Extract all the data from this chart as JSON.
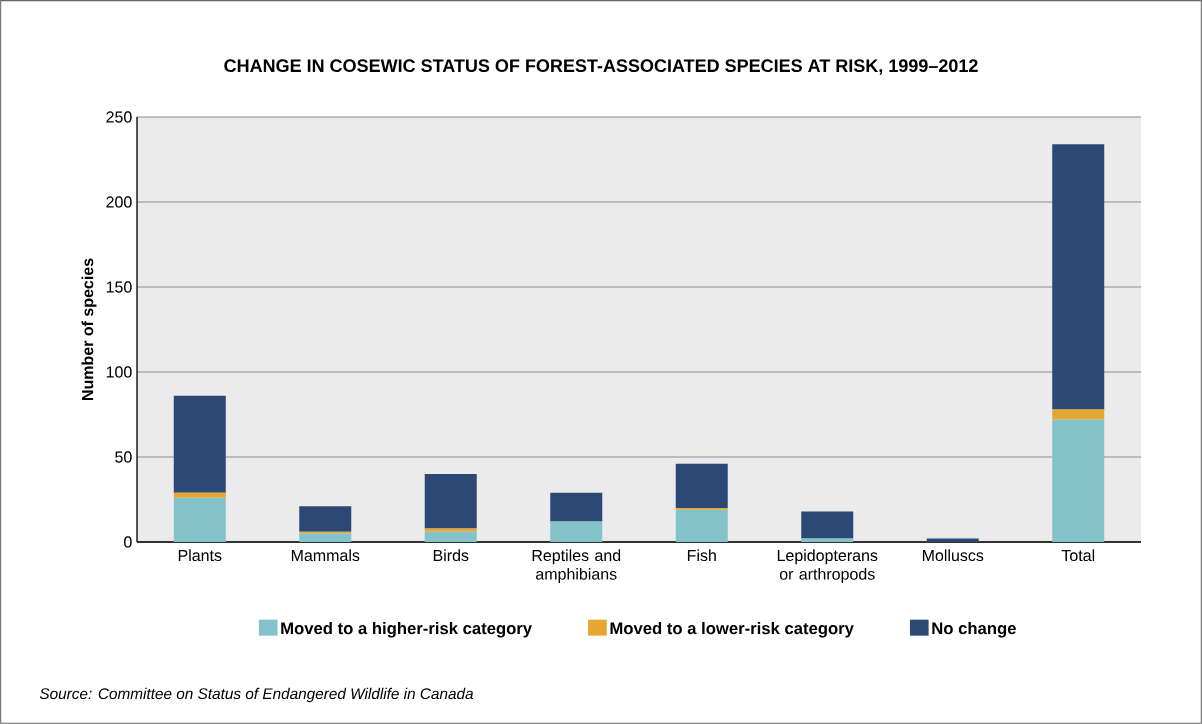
{
  "chart_data": {
    "type": "bar",
    "title": "CHANGE IN COSEWIC STATUS OF FOREST-ASSOCIATED SPECIES AT RISK, 1999–2012",
    "ylabel": "Number of species",
    "categories": [
      "Plants",
      "Mammals",
      "Birds",
      "Reptiles and amphibians",
      "Fish",
      "Lepidopterans or arthropods",
      "Molluscs",
      "Total"
    ],
    "series": [
      {
        "name": "Moved to a higher-risk category",
        "color": "#82c2c8",
        "values": [
          26,
          5,
          6,
          12,
          19,
          2,
          0,
          72
        ]
      },
      {
        "name": "Moved to a lower-risk category",
        "color": "#e5a731",
        "values": [
          3,
          1,
          2,
          0,
          1,
          0,
          0,
          6
        ]
      },
      {
        "name": "No change",
        "color": "#2c4875",
        "values": [
          57,
          15,
          32,
          17,
          26,
          16,
          2,
          156
        ]
      }
    ],
    "stacked": true,
    "ylim": [
      0,
      250
    ],
    "yticks": [
      0,
      50,
      100,
      150,
      200,
      250
    ],
    "grid": "y",
    "legend": "bottom",
    "annotations": [
      "Source: Committee on Status of Endangered Wildlife in Canada"
    ]
  }
}
